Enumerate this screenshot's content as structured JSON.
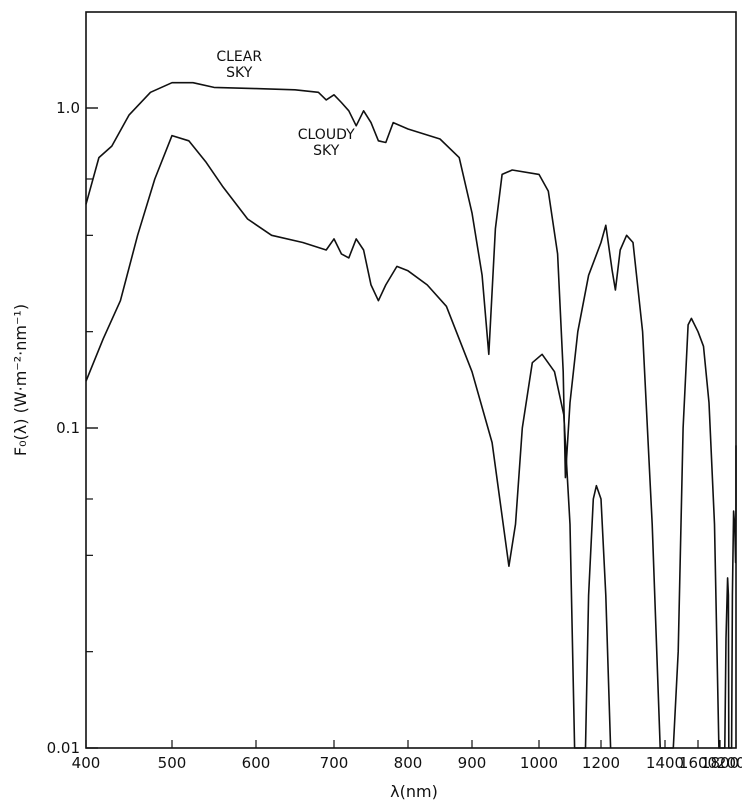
{
  "chart_data": {
    "type": "line",
    "title": "",
    "xlabel": "λ(nm)",
    "ylabel": "F₀(λ) (W·m⁻²·nm⁻¹)",
    "y_scale": "log",
    "ylim": [
      0.01,
      2.0
    ],
    "xlim": [
      400,
      2050
    ],
    "grid": false,
    "x_ticks": [
      400,
      500,
      600,
      700,
      800,
      900,
      1000,
      1200,
      1400,
      1600,
      1800,
      2000
    ],
    "x_tick_labels": [
      "400",
      "500",
      "600",
      "700",
      "800",
      "900",
      "1000",
      "1200",
      "1400",
      "1600",
      "1800",
      "2000"
    ],
    "y_ticks_labeled": [
      0.01,
      0.1,
      1.0
    ],
    "y_tick_labels": [
      "0.01",
      "0.1",
      "1.0"
    ],
    "y_ticks_minor": [
      0.02,
      0.04,
      0.06,
      0.2,
      0.4,
      0.6
    ],
    "series": [
      {
        "name": "CLEAR SKY",
        "label_lines": [
          "CLEAR",
          "SKY"
        ],
        "label_anchor": [
          580,
          1.4
        ],
        "points": [
          [
            400,
            0.5
          ],
          [
            415,
            0.7
          ],
          [
            430,
            0.76
          ],
          [
            450,
            0.95
          ],
          [
            475,
            1.12
          ],
          [
            500,
            1.2
          ],
          [
            525,
            1.2
          ],
          [
            550,
            1.16
          ],
          [
            600,
            1.15
          ],
          [
            650,
            1.14
          ],
          [
            680,
            1.12
          ],
          [
            690,
            1.06
          ],
          [
            700,
            1.1
          ],
          [
            710,
            1.04
          ],
          [
            720,
            0.98
          ],
          [
            730,
            0.88
          ],
          [
            740,
            0.98
          ],
          [
            750,
            0.9
          ],
          [
            760,
            0.79
          ],
          [
            770,
            0.78
          ],
          [
            780,
            0.9
          ],
          [
            800,
            0.86
          ],
          [
            850,
            0.8
          ],
          [
            880,
            0.7
          ],
          [
            900,
            0.47
          ],
          [
            915,
            0.3
          ],
          [
            925,
            0.17
          ],
          [
            935,
            0.42
          ],
          [
            945,
            0.62
          ],
          [
            960,
            0.64
          ],
          [
            1000,
            0.62
          ],
          [
            1030,
            0.55
          ],
          [
            1060,
            0.35
          ],
          [
            1078,
            0.15
          ],
          [
            1085,
            0.07
          ],
          [
            1100,
            0.12
          ],
          [
            1125,
            0.2
          ],
          [
            1160,
            0.3
          ],
          [
            1200,
            0.38
          ],
          [
            1215,
            0.43
          ],
          [
            1235,
            0.31
          ],
          [
            1245,
            0.27
          ],
          [
            1260,
            0.36
          ],
          [
            1280,
            0.4
          ],
          [
            1300,
            0.38
          ],
          [
            1330,
            0.2
          ],
          [
            1360,
            0.05
          ],
          [
            1385,
            0.01
          ],
          [
            1450,
            0.01
          ],
          [
            1480,
            0.02
          ],
          [
            1510,
            0.1
          ],
          [
            1540,
            0.21
          ],
          [
            1560,
            0.22
          ],
          [
            1600,
            0.2
          ],
          [
            1650,
            0.18
          ],
          [
            1700,
            0.12
          ],
          [
            1750,
            0.05
          ],
          [
            1790,
            0.01
          ],
          [
            1860,
            0.01
          ],
          [
            1875,
            0.022
          ],
          [
            1895,
            0.034
          ],
          [
            1905,
            0.03
          ],
          [
            1910,
            0.01
          ],
          [
            1945,
            0.01
          ],
          [
            1955,
            0.03
          ],
          [
            1970,
            0.055
          ],
          [
            1985,
            0.049
          ],
          [
            1995,
            0.038
          ],
          [
            2005,
            0.058
          ],
          [
            2020,
            0.085
          ],
          [
            2035,
            0.088
          ],
          [
            2045,
            0.07
          ]
        ]
      },
      {
        "name": "CLOUDY SKY",
        "label_lines": [
          "CLOUDY",
          "SKY"
        ],
        "label_anchor": [
          690,
          0.8
        ],
        "points": [
          [
            400,
            0.14
          ],
          [
            420,
            0.19
          ],
          [
            440,
            0.25
          ],
          [
            460,
            0.4
          ],
          [
            480,
            0.6
          ],
          [
            500,
            0.82
          ],
          [
            520,
            0.79
          ],
          [
            540,
            0.68
          ],
          [
            560,
            0.57
          ],
          [
            590,
            0.45
          ],
          [
            620,
            0.4
          ],
          [
            660,
            0.38
          ],
          [
            690,
            0.36
          ],
          [
            700,
            0.39
          ],
          [
            710,
            0.35
          ],
          [
            720,
            0.34
          ],
          [
            730,
            0.39
          ],
          [
            740,
            0.36
          ],
          [
            750,
            0.28
          ],
          [
            760,
            0.25
          ],
          [
            770,
            0.28
          ],
          [
            785,
            0.32
          ],
          [
            800,
            0.31
          ],
          [
            830,
            0.28
          ],
          [
            860,
            0.24
          ],
          [
            900,
            0.15
          ],
          [
            930,
            0.09
          ],
          [
            955,
            0.037
          ],
          [
            965,
            0.05
          ],
          [
            975,
            0.1
          ],
          [
            990,
            0.16
          ],
          [
            1010,
            0.17
          ],
          [
            1050,
            0.15
          ],
          [
            1080,
            0.11
          ],
          [
            1100,
            0.05
          ],
          [
            1115,
            0.01
          ],
          [
            1150,
            0.01
          ],
          [
            1160,
            0.03
          ],
          [
            1175,
            0.06
          ],
          [
            1185,
            0.066
          ],
          [
            1200,
            0.06
          ],
          [
            1215,
            0.03
          ],
          [
            1230,
            0.01
          ]
        ]
      }
    ]
  }
}
